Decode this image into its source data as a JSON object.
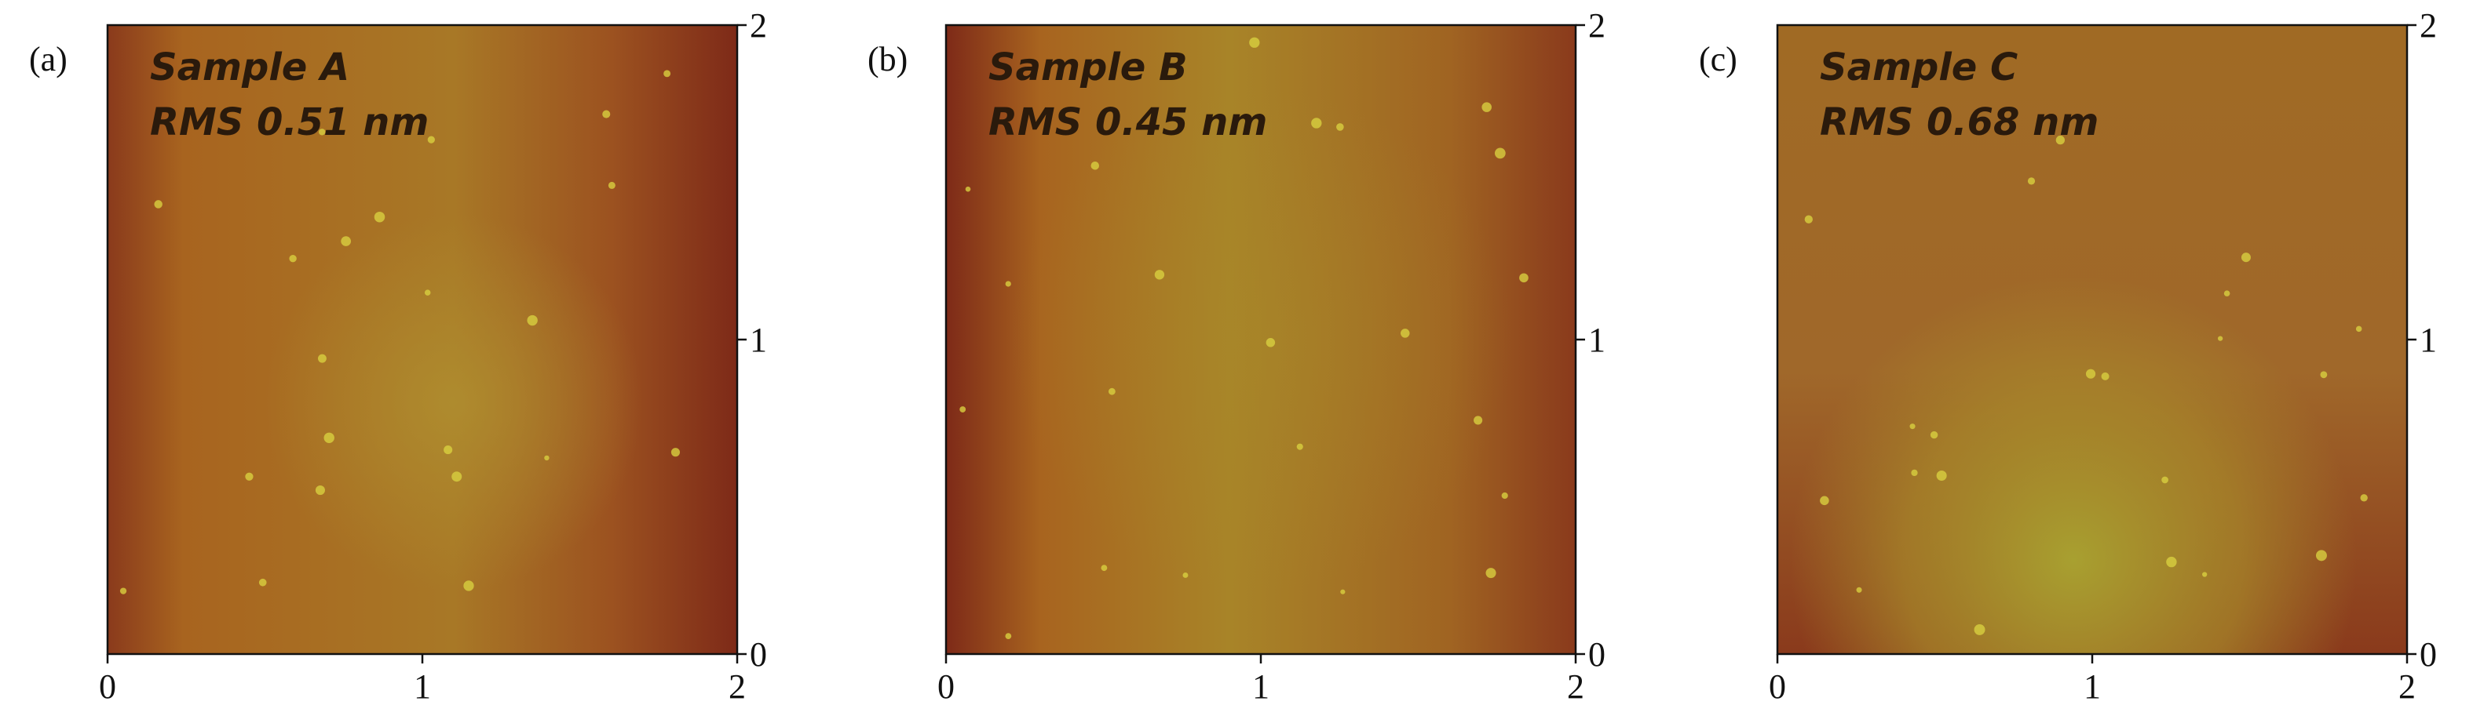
{
  "chart_data": [
    {
      "type": "image",
      "panel_label": "(a)",
      "annotations": [
        "Sample A",
        "RMS 0.51 nm"
      ],
      "xlim": [
        0,
        2
      ],
      "xticks": [
        0,
        1,
        2
      ],
      "ylim": [
        0,
        2
      ],
      "yticks": [
        0,
        1,
        2
      ]
    },
    {
      "type": "image",
      "panel_label": "(b)",
      "annotations": [
        "Sample B",
        "RMS 0.45 nm"
      ],
      "xlim": [
        0,
        2
      ],
      "xticks": [
        0,
        1,
        2
      ],
      "ylim": [
        0,
        2
      ],
      "yticks": [
        0,
        1,
        2
      ]
    },
    {
      "type": "image",
      "panel_label": "(c)",
      "annotations": [
        "Sample C",
        "RMS 0.68 nm"
      ],
      "xlim": [
        0,
        2
      ],
      "xticks": [
        0,
        1,
        2
      ],
      "ylim": [
        0,
        2
      ],
      "yticks": [
        0,
        1,
        2
      ]
    }
  ]
}
